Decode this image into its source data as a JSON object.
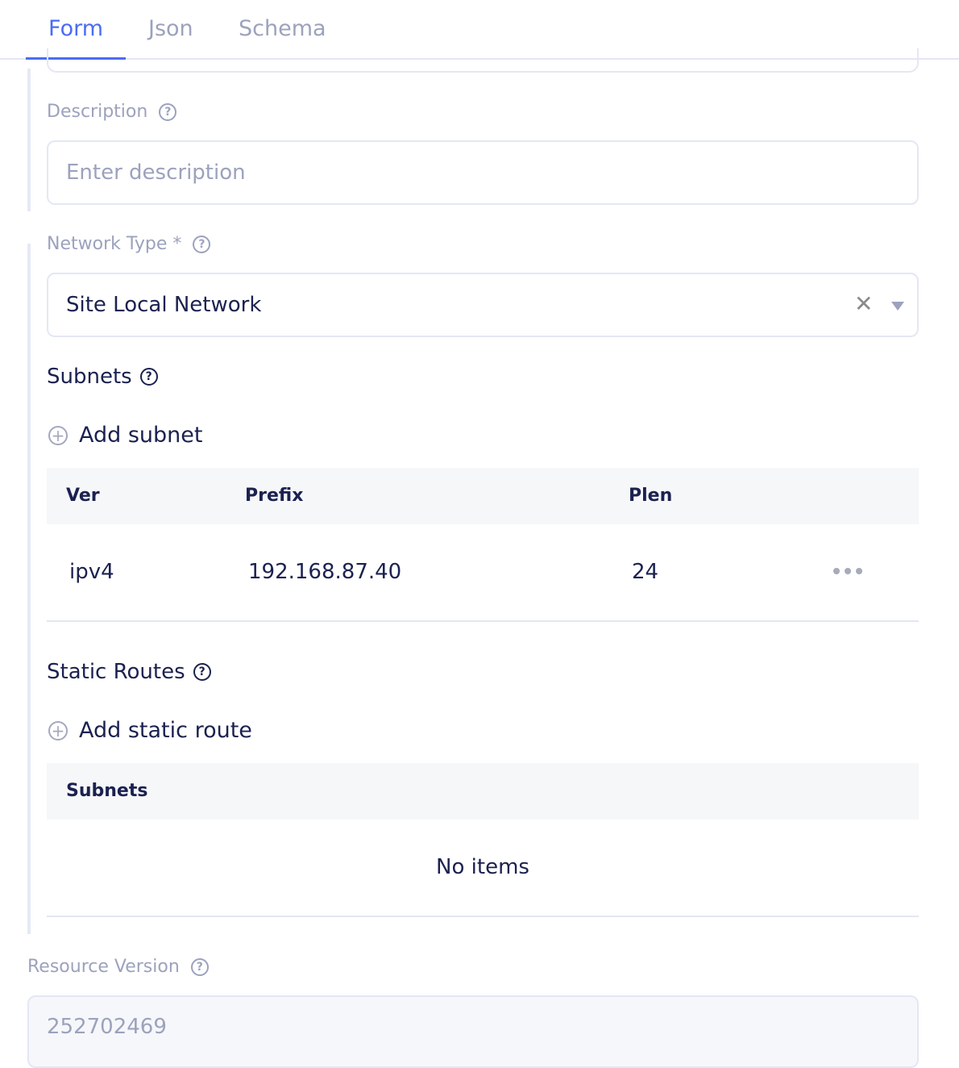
{
  "tabs": [
    {
      "label": "Form",
      "active": true
    },
    {
      "label": "Json",
      "active": false
    },
    {
      "label": "Schema",
      "active": false
    }
  ],
  "description": {
    "label": "Description",
    "placeholder": "Enter description"
  },
  "network_type": {
    "label": "Network Type *",
    "value": "Site Local Network"
  },
  "subnets": {
    "title": "Subnets",
    "add_label": "Add subnet",
    "columns": [
      "Ver",
      "Prefix",
      "Plen"
    ],
    "rows": [
      {
        "ver": "ipv4",
        "prefix": "192.168.87.40",
        "plen": "24"
      }
    ]
  },
  "static_routes": {
    "title": "Static Routes",
    "add_label": "Add static route",
    "columns": [
      "Subnets"
    ],
    "empty_text": "No items"
  },
  "resource_version": {
    "label": "Resource Version",
    "value": "252702469"
  },
  "colors": {
    "accent": "#4b6cf5",
    "text": "#1b2150",
    "muted": "#9ca2bd"
  }
}
